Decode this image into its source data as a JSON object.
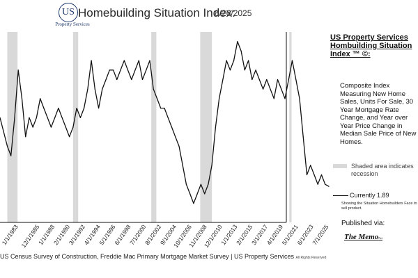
{
  "header": {
    "logo_text": "US",
    "logo_subtitle": "Property Services",
    "title": "Homebuilding Situation Index:",
    "date": "8/26/2025"
  },
  "sidebar": {
    "title": "US Property Services Hombuilding Situation Index ™ ©:",
    "description": "Composite Index Measuring New Home Sales, Units For Sale, 30 Year Mortgage Rate Change, and Year over Year Price Change in Median Sale Price of New Homes.",
    "shade_label": "Shaded area indicates recession",
    "current_label": "Currently 1.89",
    "showing_label": "Showing the Situation Homebuilders Face to sell product.",
    "published_label": "Published via:",
    "memo_name": "The Memo",
    "memo_suffix": "Net"
  },
  "footer": {
    "source": "US Census Survey of Construction, Freddie Mac Primary Mortgage Market Survey | US Property Services",
    "rights": "All Rights Reserved"
  },
  "colors": {
    "line": "#111111",
    "recession": "#d9d9d9",
    "brand": "#1f3a6e"
  },
  "chart_data": {
    "type": "line",
    "title": "Homebuilding Situation Index",
    "xlabel": "",
    "ylabel": "",
    "x_range": [
      1980.5,
      2025.6
    ],
    "ylim": [
      0,
      10
    ],
    "grid": false,
    "legend_position": "right",
    "tick_labels": [
      "1/1/1983",
      "12/1/1985",
      "1/1/1988",
      "2/1/1990",
      "3/1/1992",
      "4/1/1994",
      "5/1/1996",
      "6/1/1998",
      "7/1/2000",
      "8/1/2002",
      "9/1/2004",
      "10/1/2006",
      "11/1/2008",
      "12/1/2010",
      "1/1/2013",
      "2/1/2015",
      "3/1/2017",
      "4/1/2019",
      "5/1/2021",
      "6/1/2023",
      "7/1/2025"
    ],
    "tick_years": [
      1983.0,
      1985.92,
      1988.0,
      1990.08,
      1992.17,
      1994.25,
      1996.33,
      1998.42,
      2000.5,
      2002.58,
      2004.67,
      2006.75,
      2008.83,
      2010.92,
      2013.0,
      2015.08,
      2017.17,
      2019.25,
      2021.33,
      2023.42,
      2025.5
    ],
    "recessions": [
      [
        1981.5,
        1982.9
      ],
      [
        1990.5,
        1991.2
      ],
      [
        2001.2,
        2001.9
      ],
      [
        2007.9,
        2009.5
      ],
      [
        2020.1,
        2020.4
      ]
    ],
    "series": [
      {
        "name": "Homebuilding Situation Index",
        "x": [
          1980.5,
          1981.5,
          1982.0,
          1982.5,
          1983.0,
          1983.5,
          1984.0,
          1984.5,
          1985.0,
          1985.5,
          1986.0,
          1986.5,
          1987.0,
          1987.5,
          1988.0,
          1988.5,
          1989.0,
          1989.5,
          1990.0,
          1990.5,
          1991.0,
          1991.5,
          1992.0,
          1992.5,
          1993.0,
          1993.5,
          1994.0,
          1994.5,
          1995.0,
          1995.5,
          1996.0,
          1996.5,
          1997.0,
          1997.5,
          1998.0,
          1998.5,
          1999.0,
          1999.5,
          2000.0,
          2000.5,
          2001.0,
          2001.5,
          2002.0,
          2002.5,
          2003.0,
          2003.5,
          2004.0,
          2004.5,
          2005.0,
          2005.5,
          2006.0,
          2006.5,
          2007.0,
          2007.5,
          2008.0,
          2008.5,
          2009.0,
          2009.5,
          2010.0,
          2010.5,
          2011.0,
          2011.5,
          2012.0,
          2012.5,
          2013.0,
          2013.5,
          2014.0,
          2014.5,
          2015.0,
          2015.5,
          2016.0,
          2016.5,
          2017.0,
          2017.5,
          2018.0,
          2018.5,
          2019.0,
          2019.5,
          2020.0,
          2020.5,
          2021.0,
          2021.5,
          2022.0,
          2022.5,
          2023.0,
          2023.5,
          2024.0,
          2024.5,
          2025.0,
          2025.5
        ],
        "values": [
          5.5,
          4.0,
          3.5,
          5.5,
          8.0,
          6.5,
          4.5,
          5.5,
          5.0,
          5.5,
          6.5,
          6.0,
          5.5,
          5.0,
          5.5,
          6.0,
          5.5,
          5.0,
          4.5,
          5.0,
          6.0,
          5.5,
          6.0,
          7.0,
          8.5,
          7.0,
          6.0,
          7.0,
          7.5,
          8.0,
          8.0,
          7.5,
          8.0,
          8.5,
          8.0,
          7.5,
          8.0,
          8.5,
          7.5,
          8.0,
          8.5,
          7.0,
          6.5,
          6.0,
          6.0,
          5.5,
          5.0,
          4.5,
          4.0,
          3.0,
          2.0,
          1.5,
          1.0,
          1.5,
          2.0,
          1.5,
          2.0,
          3.0,
          5.0,
          6.5,
          7.5,
          8.5,
          8.0,
          8.5,
          9.5,
          9.0,
          8.0,
          8.5,
          7.5,
          8.0,
          7.5,
          7.0,
          7.5,
          7.0,
          6.5,
          7.5,
          7.0,
          6.5,
          7.5,
          8.5,
          7.5,
          6.5,
          4.5,
          2.5,
          3.0,
          2.5,
          2.0,
          2.5,
          2.0,
          1.89
        ]
      }
    ],
    "annotations": [
      "Currently 1.89"
    ]
  }
}
